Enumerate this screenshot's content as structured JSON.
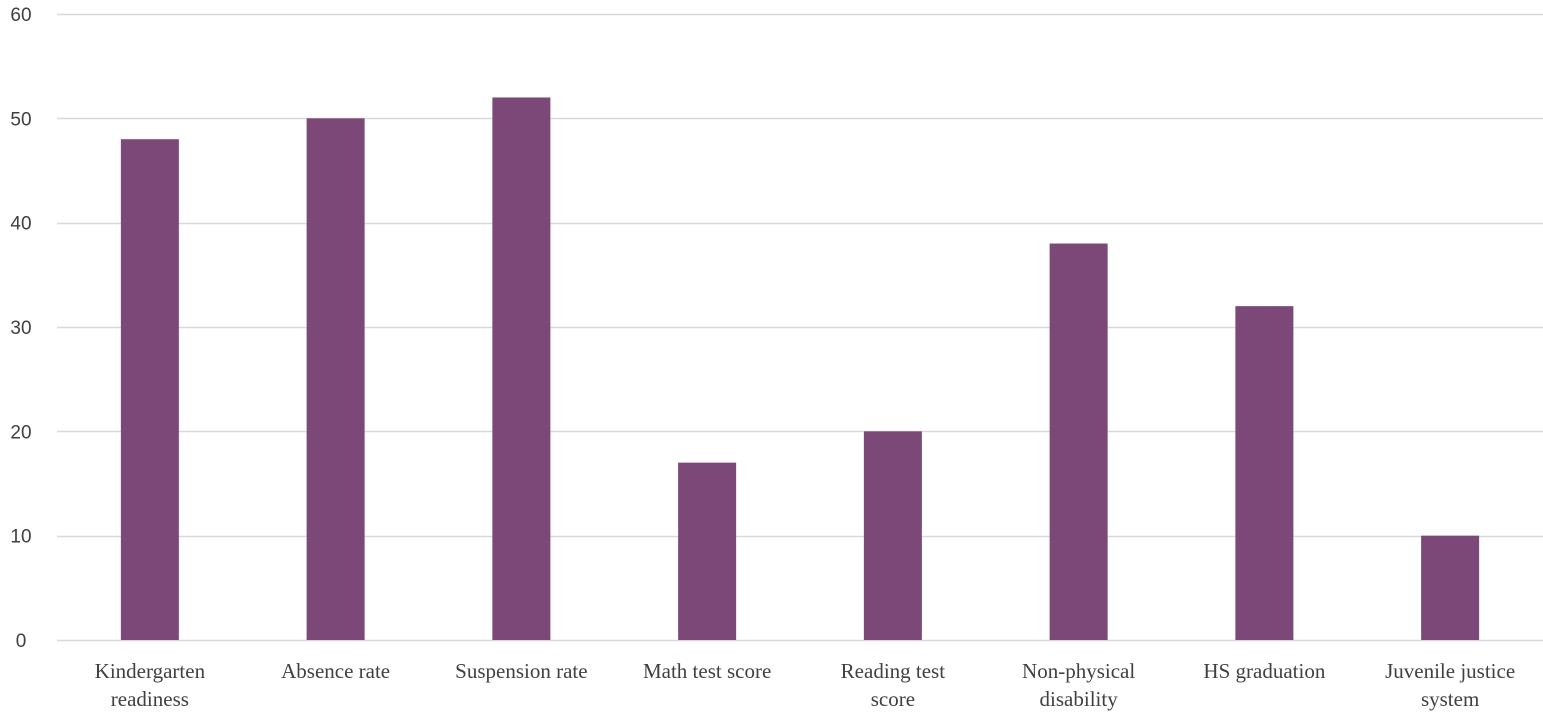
{
  "chart_data": {
    "type": "bar",
    "title": "",
    "xlabel": "",
    "ylabel": "",
    "ylim": [
      0,
      60
    ],
    "yticks": [
      0,
      10,
      20,
      30,
      40,
      50,
      60
    ],
    "grid": true,
    "legend": "none",
    "categories": [
      "Kindergarten readiness",
      "Absence rate",
      "Suspension rate",
      "Math test score",
      "Reading test score",
      "Non-physical disability",
      "HS graduation",
      "Juvenile justice system"
    ],
    "category_label_lines": [
      [
        "Kindergarten",
        "readiness"
      ],
      [
        "Absence rate"
      ],
      [
        "Suspension rate"
      ],
      [
        "Math test score"
      ],
      [
        "Reading test",
        "score"
      ],
      [
        "Non-physical",
        "disability"
      ],
      [
        "HS graduation"
      ],
      [
        "Juvenile justice",
        "system"
      ]
    ],
    "values": [
      48,
      50,
      52,
      17,
      20,
      38,
      32,
      10
    ],
    "colors": {
      "bar": "#7b4877",
      "grid": "#d9d9d9",
      "text": "#404040"
    }
  }
}
